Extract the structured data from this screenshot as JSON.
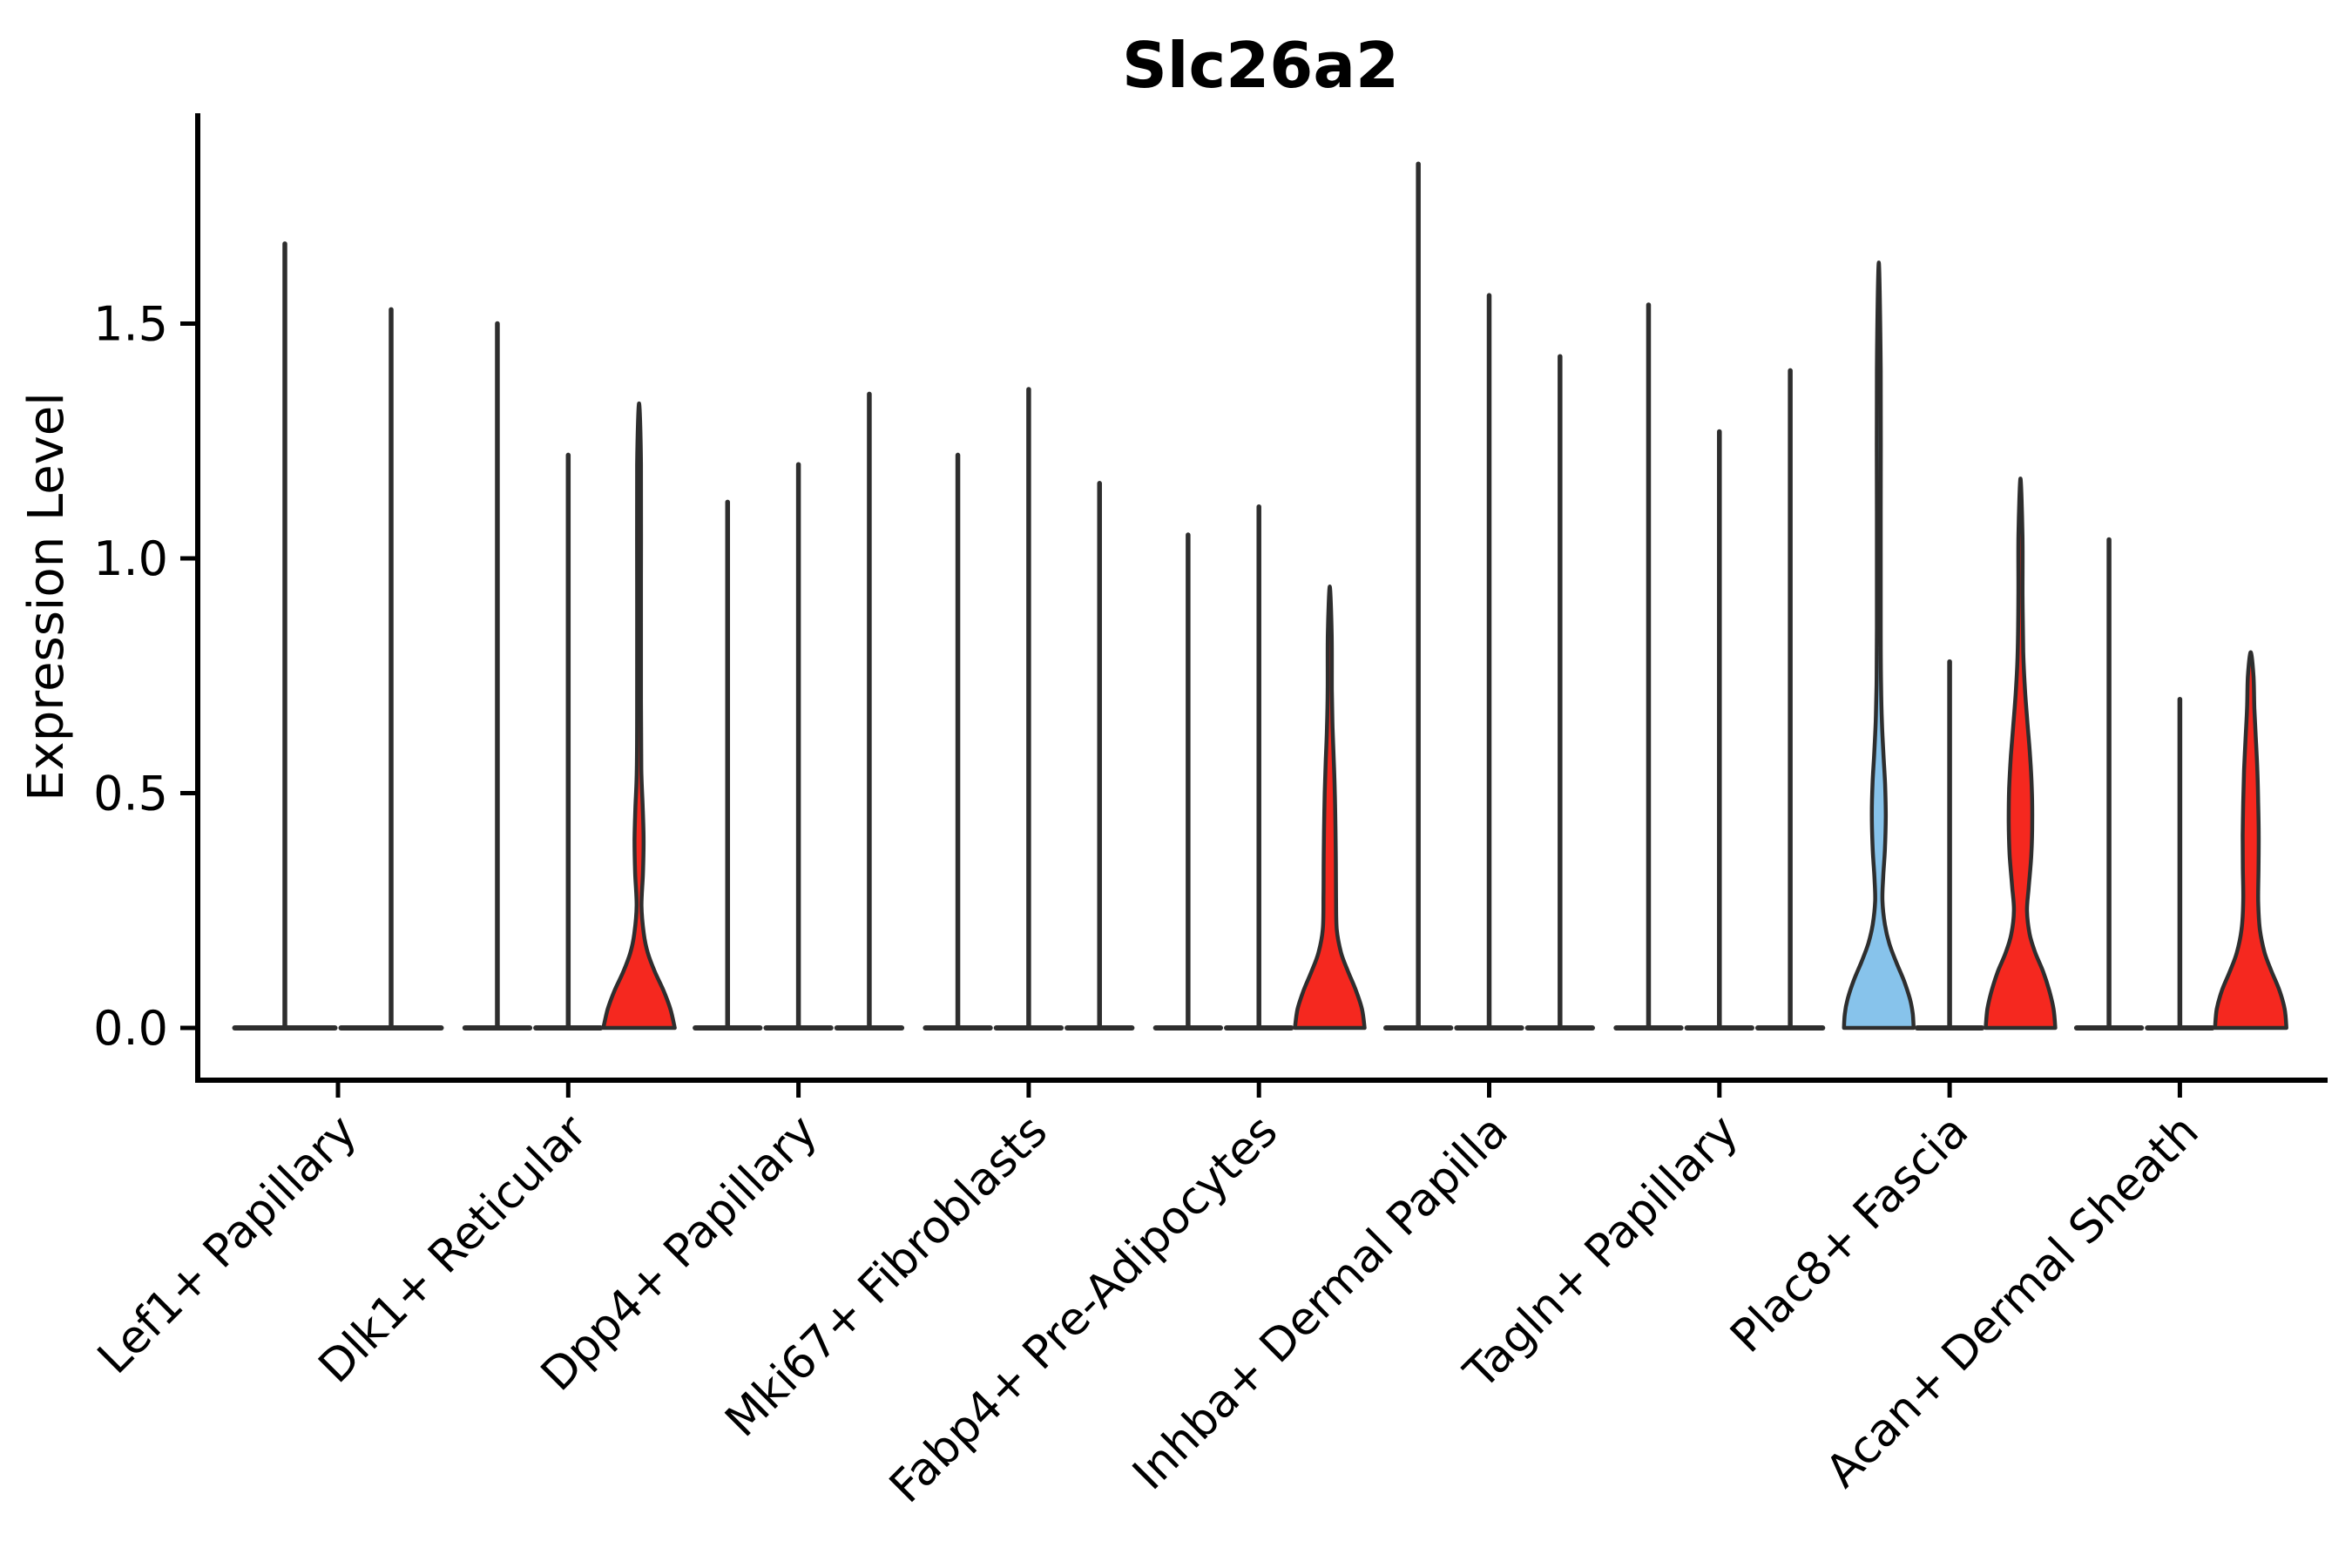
{
  "chart_data": {
    "type": "violin",
    "title": "Slc26a2",
    "ylabel": "Expression Level",
    "xlabel": "",
    "ytick_labels": [
      "0.0",
      "0.5",
      "1.0",
      "1.5"
    ],
    "ytick_values": [
      0.0,
      0.5,
      1.0,
      1.5
    ],
    "ylim": [
      -0.11,
      1.95
    ],
    "grid": false,
    "legend": "none",
    "colors": {
      "red_fill": "#f5281f",
      "blue_fill": "#87c3eb",
      "outline": "#2e2e2e",
      "axis": "#000000"
    },
    "categories": [
      "Lef1+ Papillary",
      "Dlk1+ Reticular",
      "Dpp4+ Papillary",
      "Mki67+ Fibroblasts",
      "Fabp4+ Pre-Adipocytes",
      "Inhba+ Dermal Papilla",
      "Tagln+ Papillary",
      "Plac8+ Fascia",
      "Acan+ Dermal Sheath"
    ],
    "groups": [
      {
        "label": "Lef1+ Papillary",
        "violins": [
          {
            "max": 1.67,
            "fill": "none",
            "shape": "spike"
          },
          {
            "max": 1.53,
            "fill": "none",
            "shape": "spike"
          }
        ]
      },
      {
        "label": "Dlk1+ Reticular",
        "violins": [
          {
            "max": 1.5,
            "fill": "none",
            "shape": "spike"
          },
          {
            "max": 1.22,
            "fill": "none",
            "shape": "spike"
          },
          {
            "max": 1.33,
            "fill": "red",
            "shape": "violin",
            "profile": [
              [
                0,
                41
              ],
              [
                0.04,
                36
              ],
              [
                0.08,
                28
              ],
              [
                0.12,
                18
              ],
              [
                0.16,
                10
              ],
              [
                0.2,
                5.5
              ],
              [
                0.26,
                2.8
              ],
              [
                0.33,
                4.5
              ],
              [
                0.4,
                5.2
              ],
              [
                0.47,
                4.2
              ],
              [
                0.55,
                2.6
              ],
              [
                0.7,
                2.2
              ],
              [
                0.95,
                2.2
              ],
              [
                1.2,
                2.2
              ],
              [
                1.33,
                0
              ]
            ]
          }
        ]
      },
      {
        "label": "Dpp4+ Papillary",
        "violins": [
          {
            "max": 1.12,
            "fill": "none",
            "shape": "spike"
          },
          {
            "max": 1.2,
            "fill": "none",
            "shape": "spike"
          },
          {
            "max": 1.35,
            "fill": "none",
            "shape": "spike"
          }
        ]
      },
      {
        "label": "Mki67+ Fibroblasts",
        "violins": [
          {
            "max": 1.22,
            "fill": "none",
            "shape": "spike"
          },
          {
            "max": 1.36,
            "fill": "none",
            "shape": "spike"
          },
          {
            "max": 1.16,
            "fill": "none",
            "shape": "spike"
          }
        ]
      },
      {
        "label": "Fabp4+ Pre-Adipocytes",
        "violins": [
          {
            "max": 1.05,
            "fill": "none",
            "shape": "spike"
          },
          {
            "max": 1.11,
            "fill": "none",
            "shape": "spike"
          },
          {
            "max": 0.94,
            "fill": "red",
            "shape": "violin",
            "profile": [
              [
                0,
                40
              ],
              [
                0.04,
                37
              ],
              [
                0.08,
                30
              ],
              [
                0.12,
                21
              ],
              [
                0.16,
                13
              ],
              [
                0.21,
                8
              ],
              [
                0.28,
                7.2
              ],
              [
                0.35,
                7
              ],
              [
                0.42,
                6.6
              ],
              [
                0.5,
                5.8
              ],
              [
                0.57,
                4.6
              ],
              [
                0.64,
                3.2
              ],
              [
                0.72,
                2.4
              ],
              [
                0.84,
                2.2
              ],
              [
                0.94,
                0
              ]
            ]
          }
        ]
      },
      {
        "label": "Inhba+ Dermal Papilla",
        "violins": [
          {
            "max": 1.84,
            "fill": "none",
            "shape": "spike"
          },
          {
            "max": 1.56,
            "fill": "none",
            "shape": "spike"
          },
          {
            "max": 1.43,
            "fill": "none",
            "shape": "spike"
          }
        ]
      },
      {
        "label": "Tagln+ Papillary",
        "violins": [
          {
            "max": 1.54,
            "fill": "none",
            "shape": "spike"
          },
          {
            "max": 1.27,
            "fill": "none",
            "shape": "spike"
          },
          {
            "max": 1.4,
            "fill": "none",
            "shape": "spike"
          }
        ]
      },
      {
        "label": "Plac8+ Fascia",
        "violins": [
          {
            "max": 1.63,
            "fill": "blue",
            "shape": "violin",
            "profile": [
              [
                0,
                40
              ],
              [
                0.03,
                39
              ],
              [
                0.06,
                36
              ],
              [
                0.1,
                29
              ],
              [
                0.14,
                20
              ],
              [
                0.18,
                12
              ],
              [
                0.22,
                7
              ],
              [
                0.27,
                4.2
              ],
              [
                0.32,
                5
              ],
              [
                0.38,
                7
              ],
              [
                0.45,
                8
              ],
              [
                0.52,
                7.2
              ],
              [
                0.58,
                5.4
              ],
              [
                0.65,
                3.6
              ],
              [
                0.73,
                2.6
              ],
              [
                0.85,
                2.2
              ],
              [
                1.1,
                2.2
              ],
              [
                1.4,
                2.2
              ],
              [
                1.63,
                0
              ]
            ]
          },
          {
            "max": 0.78,
            "fill": "none",
            "shape": "spike"
          },
          {
            "max": 1.17,
            "fill": "red",
            "shape": "violin",
            "profile": [
              [
                0,
                40
              ],
              [
                0.04,
                38
              ],
              [
                0.08,
                33
              ],
              [
                0.12,
                26
              ],
              [
                0.16,
                17
              ],
              [
                0.2,
                10.5
              ],
              [
                0.25,
                7.5
              ],
              [
                0.3,
                9.5
              ],
              [
                0.37,
                12.5
              ],
              [
                0.44,
                13.5
              ],
              [
                0.51,
                13
              ],
              [
                0.58,
                11
              ],
              [
                0.65,
                8
              ],
              [
                0.72,
                5.2
              ],
              [
                0.8,
                3.2
              ],
              [
                0.92,
                2.4
              ],
              [
                1.05,
                2.3
              ],
              [
                1.17,
                0
              ]
            ]
          }
        ]
      },
      {
        "label": "Acan+ Dermal Sheath",
        "violins": [
          {
            "max": 1.04,
            "fill": "none",
            "shape": "spike"
          },
          {
            "max": 0.7,
            "fill": "none",
            "shape": "spike"
          },
          {
            "max": 0.8,
            "fill": "red",
            "shape": "violin",
            "profile": [
              [
                0,
                41
              ],
              [
                0.04,
                39
              ],
              [
                0.08,
                33
              ],
              [
                0.12,
                24
              ],
              [
                0.16,
                16
              ],
              [
                0.21,
                10.5
              ],
              [
                0.27,
                8.6
              ],
              [
                0.34,
                9
              ],
              [
                0.41,
                9.2
              ],
              [
                0.48,
                8.6
              ],
              [
                0.55,
                7.6
              ],
              [
                0.62,
                5.8
              ],
              [
                0.68,
                4.2
              ],
              [
                0.75,
                3.2
              ],
              [
                0.8,
                0
              ]
            ]
          }
        ]
      }
    ]
  }
}
